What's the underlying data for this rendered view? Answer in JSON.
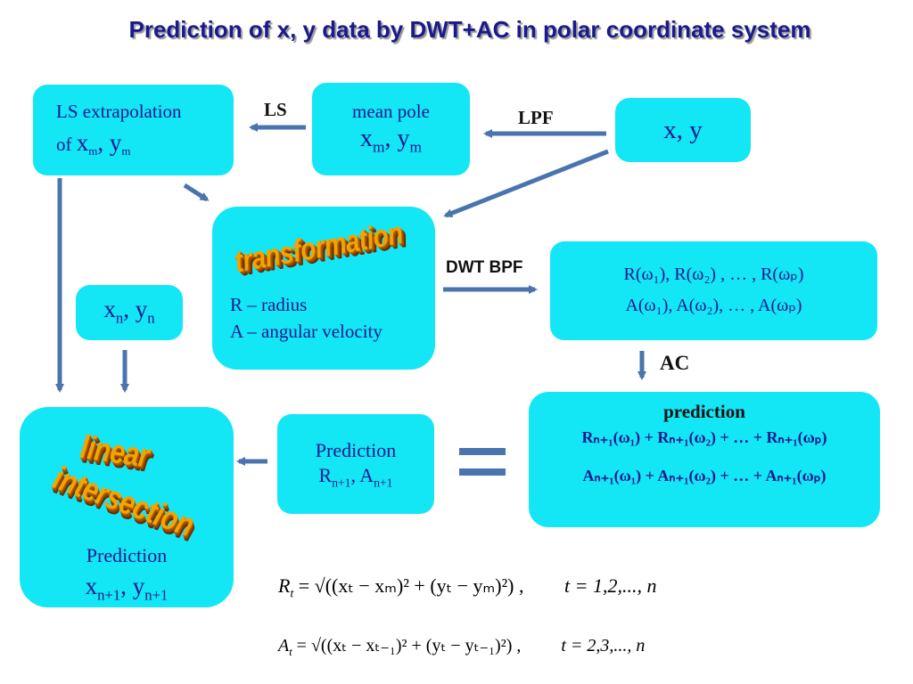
{
  "title": "Prediction of x, y data by DWT+AC in polar coordinate system",
  "nodes": {
    "ls_extrapolation": {
      "line1": "LS extrapolation",
      "line2_prefix": "of ",
      "var1": "x",
      "sub1": "m",
      "sep": ", ",
      "var2": "y",
      "sub2": "m"
    },
    "mean_pole": {
      "line1": "mean pole",
      "var1": "x",
      "sub1": "m",
      "sep": ", ",
      "var2": "y",
      "sub2": "m"
    },
    "xy": {
      "text": "x, y"
    },
    "transformation": {
      "wordart": "transformation",
      "line1": "R – radius",
      "line2": "A – angular velocity"
    },
    "spectra": {
      "line1": "R(ω₁), R(ω₂) , … , R(ωₚ)",
      "line2": "A(ω₁), A(ω₂), … , A(ωₚ)"
    },
    "xn_yn": {
      "var1": "x",
      "sub1": "n",
      "sep": ", ",
      "var2": "y",
      "sub2": "n"
    },
    "prediction_box": {
      "heading": "prediction",
      "line1": "Rₙ₊₁(ω₁) + Rₙ₊₁(ω₂) + … + Rₙ₊₁(ωₚ)",
      "line2": "Aₙ₊₁(ω₁) + Aₙ₊₁(ω₂) + … + Aₙ₊₁(ωₚ)"
    },
    "prediction_ra": {
      "line1": "Prediction",
      "var1": "R",
      "sub1": "n+1",
      "sep": ", ",
      "var2": "A",
      "sub2": "n+1"
    },
    "linear_intersection": {
      "wordart1": "linear",
      "wordart2": "intersection",
      "line1": "Prediction",
      "var1": "x",
      "sub1": "n+1",
      "sep": ", ",
      "var2": "y",
      "sub2": "n+1"
    }
  },
  "edge_labels": {
    "ls": "LS",
    "lpf": "LPF",
    "dwt_bpf": "DWT BPF",
    "ac": "AC"
  },
  "formulas": {
    "r": {
      "lhs": "R",
      "lhs_sub": "t",
      "body": "= √((xₜ − xₘ)² + (yₜ − yₘ)²) ,",
      "range": "t = 1,2,..., n"
    },
    "a": {
      "lhs": "A",
      "lhs_sub": "t",
      "body": "= √((xₜ − xₜ₋₁)² + (yₜ − yₜ₋₁)²) ,",
      "range": "t = 2,3,..., n"
    }
  },
  "colors": {
    "box": "#13e6f5",
    "arrow": "#4a74ad",
    "text": "#1a1a8c",
    "wordart": "#f2a400"
  }
}
